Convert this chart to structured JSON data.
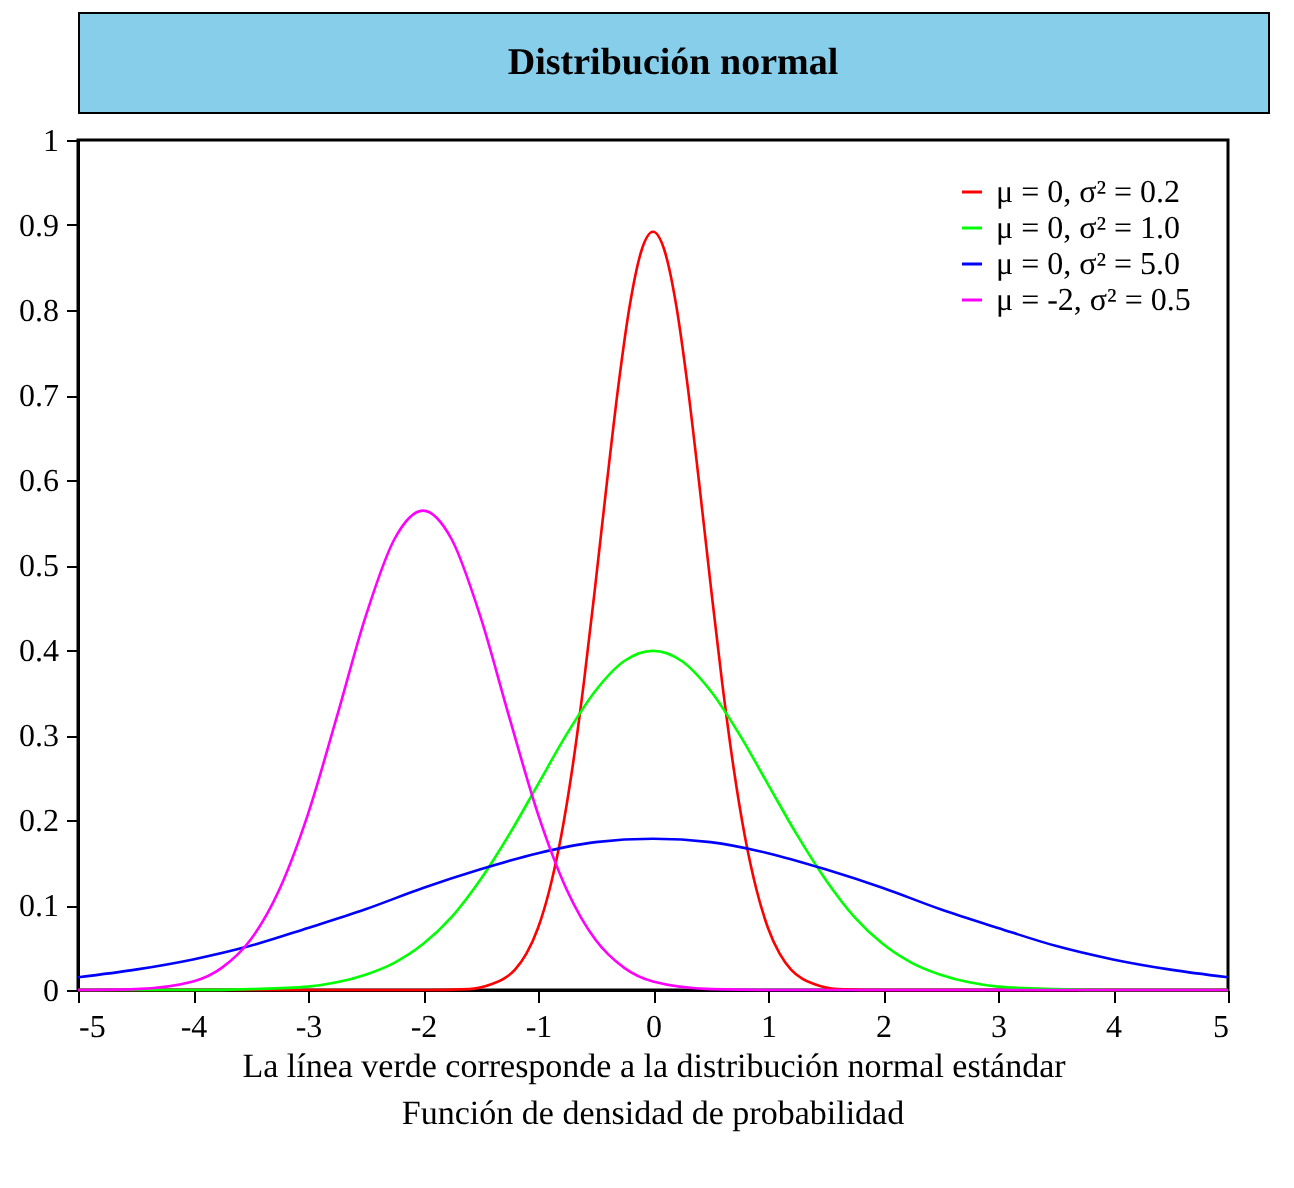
{
  "chart_data": {
    "type": "line",
    "title": "Distribución normal",
    "xlabel": "La línea verde corresponde a la distribución normal estándar",
    "annotations": [
      "Función de densidad de probabilidad"
    ],
    "xlim": [
      -5,
      5
    ],
    "xticks": [
      -5,
      -4,
      -3,
      -2,
      -1,
      0,
      1,
      2,
      3,
      4,
      5
    ],
    "ylim": [
      0,
      1
    ],
    "yticks": [
      0,
      0.1,
      0.2,
      0.3,
      0.4,
      0.5,
      0.6,
      0.7,
      0.8,
      0.9,
      1
    ],
    "grid": false,
    "legend": "top right",
    "marker": "none",
    "line_style": "solid",
    "series": [
      {
        "name": "μ = 0, σ² = 0.2",
        "color": "#ff0000",
        "x": [
          -5,
          -2,
          -1.6,
          -1.4,
          -1.3,
          -1.2,
          -1.1,
          -1.0,
          -0.9,
          -0.8,
          -0.7,
          -0.6,
          -0.5,
          -0.4,
          -0.3,
          -0.2,
          -0.1,
          0,
          0.1,
          0.2,
          0.3,
          0.4,
          0.5,
          0.6,
          0.7,
          0.8,
          0.9,
          1.0,
          1.1,
          1.2,
          1.3,
          1.4,
          1.6,
          2,
          5
        ],
        "values": [
          0,
          0,
          0.001,
          0.007,
          0.013,
          0.024,
          0.043,
          0.073,
          0.118,
          0.18,
          0.262,
          0.363,
          0.478,
          0.598,
          0.712,
          0.807,
          0.87,
          0.892,
          0.87,
          0.807,
          0.712,
          0.598,
          0.478,
          0.363,
          0.262,
          0.18,
          0.118,
          0.073,
          0.043,
          0.024,
          0.013,
          0.007,
          0.001,
          0,
          0
        ]
      },
      {
        "name": "μ = 0, σ² = 1.0",
        "color": "#00ff00",
        "x": [
          -5,
          -4,
          -3.5,
          -3,
          -2.75,
          -2.5,
          -2.25,
          -2,
          -1.75,
          -1.5,
          -1.25,
          -1,
          -0.75,
          -0.5,
          -0.25,
          0,
          0.25,
          0.5,
          0.75,
          1,
          1.25,
          1.5,
          1.75,
          2,
          2.25,
          2.5,
          2.75,
          3,
          3.5,
          4,
          5
        ],
        "values": [
          0,
          0,
          0.001,
          0.004,
          0.009,
          0.018,
          0.032,
          0.054,
          0.086,
          0.13,
          0.183,
          0.242,
          0.301,
          0.352,
          0.387,
          0.399,
          0.387,
          0.352,
          0.301,
          0.242,
          0.183,
          0.13,
          0.086,
          0.054,
          0.032,
          0.018,
          0.009,
          0.004,
          0.001,
          0,
          0
        ]
      },
      {
        "name": "μ = 0, σ² = 5.0",
        "color": "#0000ff",
        "x": [
          -5,
          -4.5,
          -4,
          -3.5,
          -3,
          -2.5,
          -2,
          -1.5,
          -1,
          -0.5,
          0,
          0.5,
          1,
          1.5,
          2,
          2.5,
          3,
          3.5,
          4,
          4.5,
          5
        ],
        "values": [
          0.015,
          0.024,
          0.036,
          0.052,
          0.073,
          0.095,
          0.12,
          0.142,
          0.161,
          0.174,
          0.178,
          0.174,
          0.161,
          0.142,
          0.12,
          0.095,
          0.073,
          0.052,
          0.036,
          0.024,
          0.015
        ]
      },
      {
        "name": "μ = -2, σ² = 0.5",
        "color": "#ff00ff",
        "x": [
          -5,
          -4.5,
          -4,
          -3.75,
          -3.5,
          -3.25,
          -3,
          -2.75,
          -2.5,
          -2.25,
          -2,
          -1.75,
          -1.5,
          -1.25,
          -1,
          -0.75,
          -0.5,
          -0.25,
          0,
          0.5,
          1,
          5
        ],
        "values": [
          0,
          0.001,
          0.01,
          0.026,
          0.059,
          0.118,
          0.207,
          0.321,
          0.439,
          0.53,
          0.564,
          0.53,
          0.439,
          0.321,
          0.207,
          0.118,
          0.059,
          0.026,
          0.01,
          0.001,
          0,
          0
        ]
      }
    ]
  }
}
